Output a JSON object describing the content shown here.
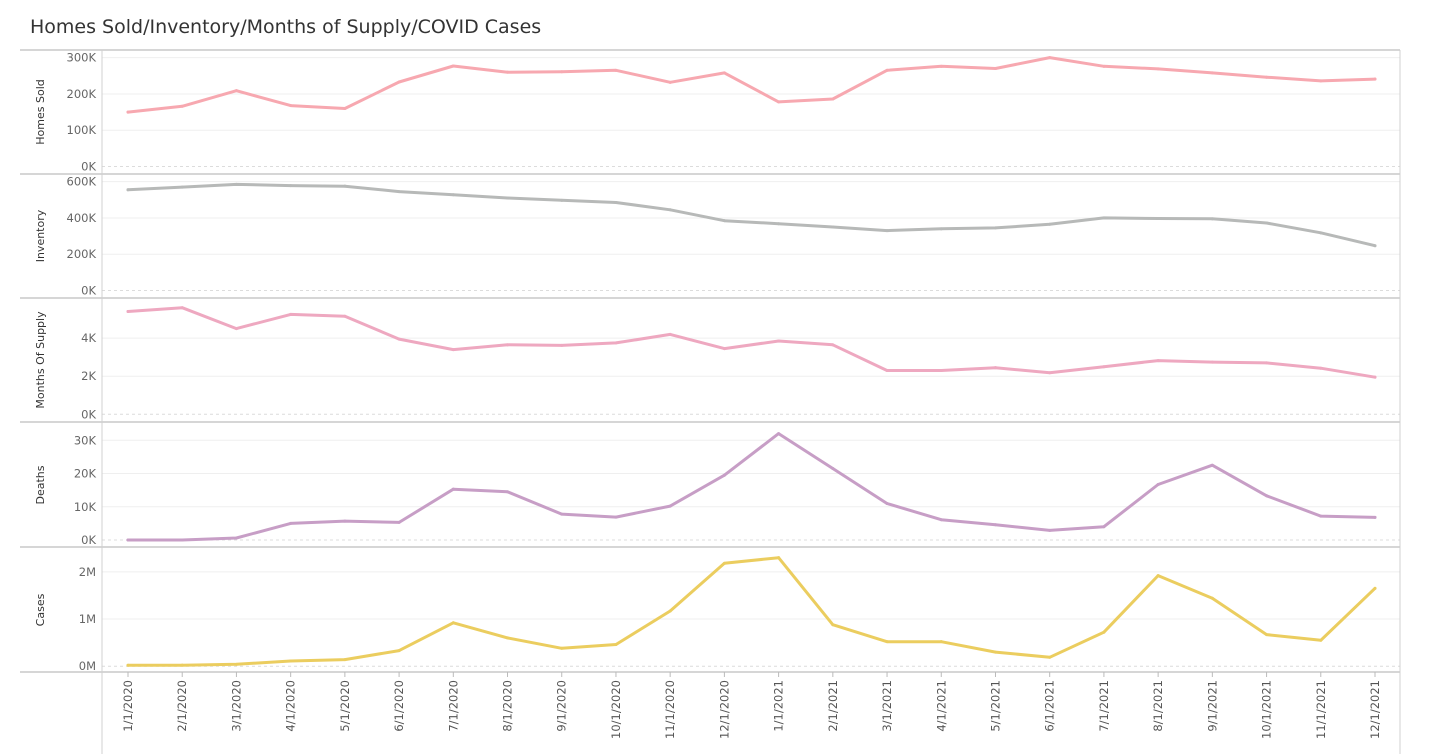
{
  "title": "Homes Sold/Inventory/Months of Supply/COVID Cases",
  "chart_data": {
    "type": "line",
    "title": "Homes Sold/Inventory/Months of Supply/COVID Cases",
    "x": [
      "1/1/2020",
      "2/1/2020",
      "3/1/2020",
      "4/1/2020",
      "5/1/2020",
      "6/1/2020",
      "7/1/2020",
      "8/1/2020",
      "9/1/2020",
      "10/1/2020",
      "11/1/2020",
      "12/1/2020",
      "1/1/2021",
      "2/1/2021",
      "3/1/2021",
      "4/1/2021",
      "5/1/2021",
      "6/1/2021",
      "7/1/2021",
      "8/1/2021",
      "9/1/2021",
      "10/1/2021",
      "11/1/2021",
      "12/1/2021"
    ],
    "grid": true,
    "panels": [
      {
        "name": "Homes Sold",
        "ylabel": "Homes Sold",
        "color": "#f7a8b0",
        "ylim": [
          -15000,
          310000
        ],
        "ticks": [
          0,
          100000,
          200000,
          300000
        ],
        "tick_labels": [
          "0K",
          "100K",
          "200K",
          "300K"
        ],
        "values": [
          150000,
          166000,
          209000,
          168000,
          160000,
          233000,
          277000,
          260000,
          261000,
          265000,
          232000,
          258000,
          178000,
          186000,
          265000,
          276000,
          270000,
          300000,
          276000,
          269000,
          258000,
          246000,
          236000,
          241000
        ]
      },
      {
        "name": "Inventory",
        "ylabel": "Inventory",
        "color": "#b7b9b8",
        "ylim": [
          -30000,
          620000
        ],
        "ticks": [
          0,
          200000,
          400000,
          600000
        ],
        "tick_labels": [
          "0K",
          "200K",
          "400K",
          "600K"
        ],
        "values": [
          555000,
          570000,
          585000,
          578000,
          575000,
          545000,
          528000,
          510000,
          497000,
          485000,
          445000,
          385000,
          368000,
          350000,
          330000,
          340000,
          345000,
          365000,
          400000,
          397000,
          395000,
          372000,
          318000,
          247000
        ]
      },
      {
        "name": "Months Of Supply",
        "ylabel": "Months Of Supply",
        "color": "#eea8c0",
        "ylim": [
          -300,
          5900
        ],
        "ticks": [
          0,
          2000,
          4000
        ],
        "tick_labels": [
          "0K",
          "2K",
          "4K"
        ],
        "values": [
          5400,
          5600,
          4500,
          5250,
          5150,
          3950,
          3400,
          3650,
          3620,
          3750,
          4200,
          3450,
          3850,
          3650,
          2300,
          2300,
          2450,
          2180,
          2500,
          2820,
          2740,
          2700,
          2420,
          1950
        ]
      },
      {
        "name": "Deaths",
        "ylabel": "Deaths",
        "color": "#c79ec6",
        "ylim": [
          -1500,
          34000
        ],
        "ticks": [
          0,
          10000,
          20000,
          30000
        ],
        "tick_labels": [
          "0K",
          "10K",
          "20K",
          "30K"
        ],
        "values": [
          0,
          0,
          600,
          5000,
          5700,
          5300,
          15300,
          14500,
          7800,
          6900,
          10200,
          19500,
          32000,
          21500,
          11000,
          6100,
          4600,
          2900,
          4000,
          16700,
          22500,
          13300,
          7200,
          6800
        ]
      },
      {
        "name": "Cases",
        "ylabel": "Cases",
        "color": "#ebcd5f",
        "ylim": [
          -80000,
          2420000
        ],
        "ticks": [
          0,
          1000000,
          2000000
        ],
        "tick_labels": [
          "0M",
          "1M",
          "2M"
        ],
        "values": [
          20000,
          22000,
          40000,
          110000,
          140000,
          330000,
          920000,
          600000,
          380000,
          460000,
          1170000,
          2180000,
          2300000,
          880000,
          520000,
          520000,
          300000,
          190000,
          720000,
          1920000,
          1440000,
          670000,
          550000,
          1650000
        ]
      }
    ]
  }
}
